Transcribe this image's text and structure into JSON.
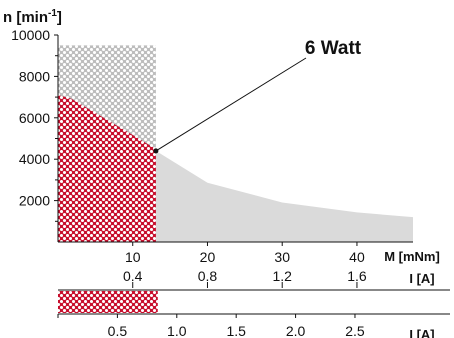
{
  "chart_data": {
    "type": "area",
    "title": "",
    "ylabel": {
      "base": "n [min",
      "sup": "-1",
      "end": "]"
    },
    "y_ticks": [
      2000,
      4000,
      6000,
      8000,
      10000
    ],
    "ylim": [
      0,
      10000
    ],
    "xlabel_torque": "M [mNm]",
    "torque_ticks": [
      10,
      20,
      30,
      40
    ],
    "xlim_torque": [
      0,
      47.5
    ],
    "xlabel_current": "I [A]",
    "current_ticks": [
      0.4,
      0.8,
      1.2,
      1.6
    ],
    "current_per_mNm": 0.04,
    "xlabel_current_bar": "I [A]",
    "current_bar_ticks": [
      0.5,
      1.0,
      1.5,
      2.0,
      2.5
    ],
    "xlim_current_bar": [
      0,
      3.3
    ],
    "annotation": "6 Watt",
    "annotation_point": {
      "torque": 13.1,
      "speed": 4400
    },
    "regions": [
      {
        "name": "",
        "kind": "power_limit",
        "boundary": [
          [
            13.1,
            9500
          ],
          [
            13.1,
            4400
          ],
          [
            20,
            2865
          ],
          [
            30,
            1910
          ],
          [
            40,
            1430
          ],
          [
            47.5,
            1200
          ]
        ],
        "max_speed": 9500,
        "color": "#dadada"
      },
      {
        "name": "",
        "kind": "recommended_range",
        "boundary": [
          [
            0,
            9500
          ],
          [
            13.1,
            9500
          ],
          [
            13.1,
            0
          ],
          [
            0,
            0
          ]
        ],
        "color": "#c8c8c8"
      },
      {
        "name": "",
        "kind": "continuous_operation",
        "boundary": [
          [
            0,
            7100
          ],
          [
            1.8,
            6920
          ],
          [
            10,
            5170
          ],
          [
            13.1,
            4490
          ],
          [
            13.1,
            0
          ],
          [
            0,
            0
          ]
        ],
        "color": "#c8102e"
      }
    ],
    "continuous_current_range": [
      0,
      0.84
    ],
    "grid": false,
    "legend": "none"
  }
}
